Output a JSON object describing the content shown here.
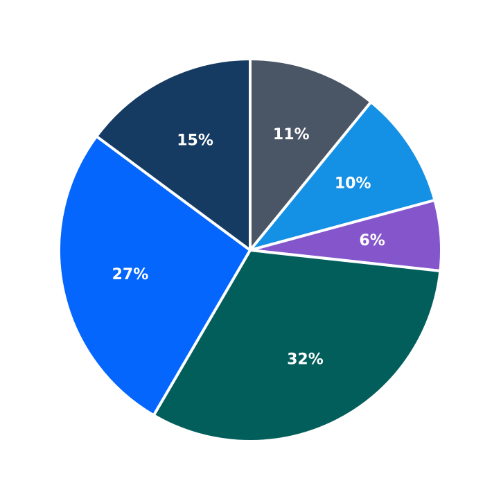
{
  "chart_data": {
    "type": "pie",
    "title": "",
    "start_angle_deg": 90,
    "direction": "clockwise",
    "slices": [
      {
        "label": "11%",
        "value": 11,
        "color": "#4a5565"
      },
      {
        "label": "10%",
        "value": 10,
        "color": "#1490e4"
      },
      {
        "label": "6%",
        "value": 6,
        "color": "#8556cb"
      },
      {
        "label": "32%",
        "value": 32,
        "color": "#025e5b"
      },
      {
        "label": "27%",
        "value": 27,
        "color": "#0566fd"
      },
      {
        "label": "15%",
        "value": 15,
        "color": "#153b63"
      }
    ]
  }
}
